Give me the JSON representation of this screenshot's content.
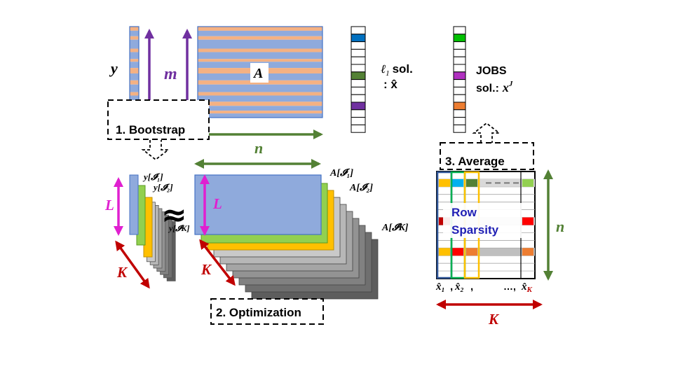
{
  "colors": {
    "blue": "#8faadc",
    "blue_stroke": "#4472c4",
    "orange": "#f4b183",
    "green": "#92d050",
    "yellow": "#ffc000",
    "purple": "#7030a0",
    "magenta": "#e020d0",
    "dark_green": "#538135",
    "red": "#c00000",
    "dark_blue": "#1f1fb4",
    "cyan_blue": "#0070c0",
    "bright_green": "#00c000",
    "violet": "#b030c0",
    "gray": "#808080"
  },
  "top": {
    "y_label": "y",
    "m_label": "m",
    "A_label": "A",
    "n_label": "n",
    "l1_sol_line1": "ℓ",
    "l1_sub": "1",
    "l1_sol_text": "sol.",
    "l1_sol_line2": ": x̂",
    "jobs_line1": "JOBS",
    "jobs_line2": "sol.:",
    "jobs_var": "x",
    "jobs_sup": "J"
  },
  "steps": {
    "bootstrap": "1. Bootstrap",
    "optimization": "2. Optimization",
    "average": "3. Average"
  },
  "bottom": {
    "y_I1": "y[𝓘₁]",
    "y_I2": "y[𝓘₂]",
    "y_IK": "y[𝓘K]",
    "A_I1": "A[𝓘₁]",
    "A_I2": "A[𝓘₂]",
    "A_IK": "A[𝓘K]",
    "L_label": "L",
    "K_label": "K",
    "approx": "≈",
    "n_label": "n"
  },
  "average": {
    "row_label": "Row",
    "sparsity_label": "Sparsity",
    "x1": "x̂₁",
    "x2": "x̂₂",
    "sep1": ",",
    "sep2": ",",
    "dots": "…,",
    "xK": "x̂",
    "xK_sub": "K",
    "n_label": "n",
    "K_label": "K"
  }
}
